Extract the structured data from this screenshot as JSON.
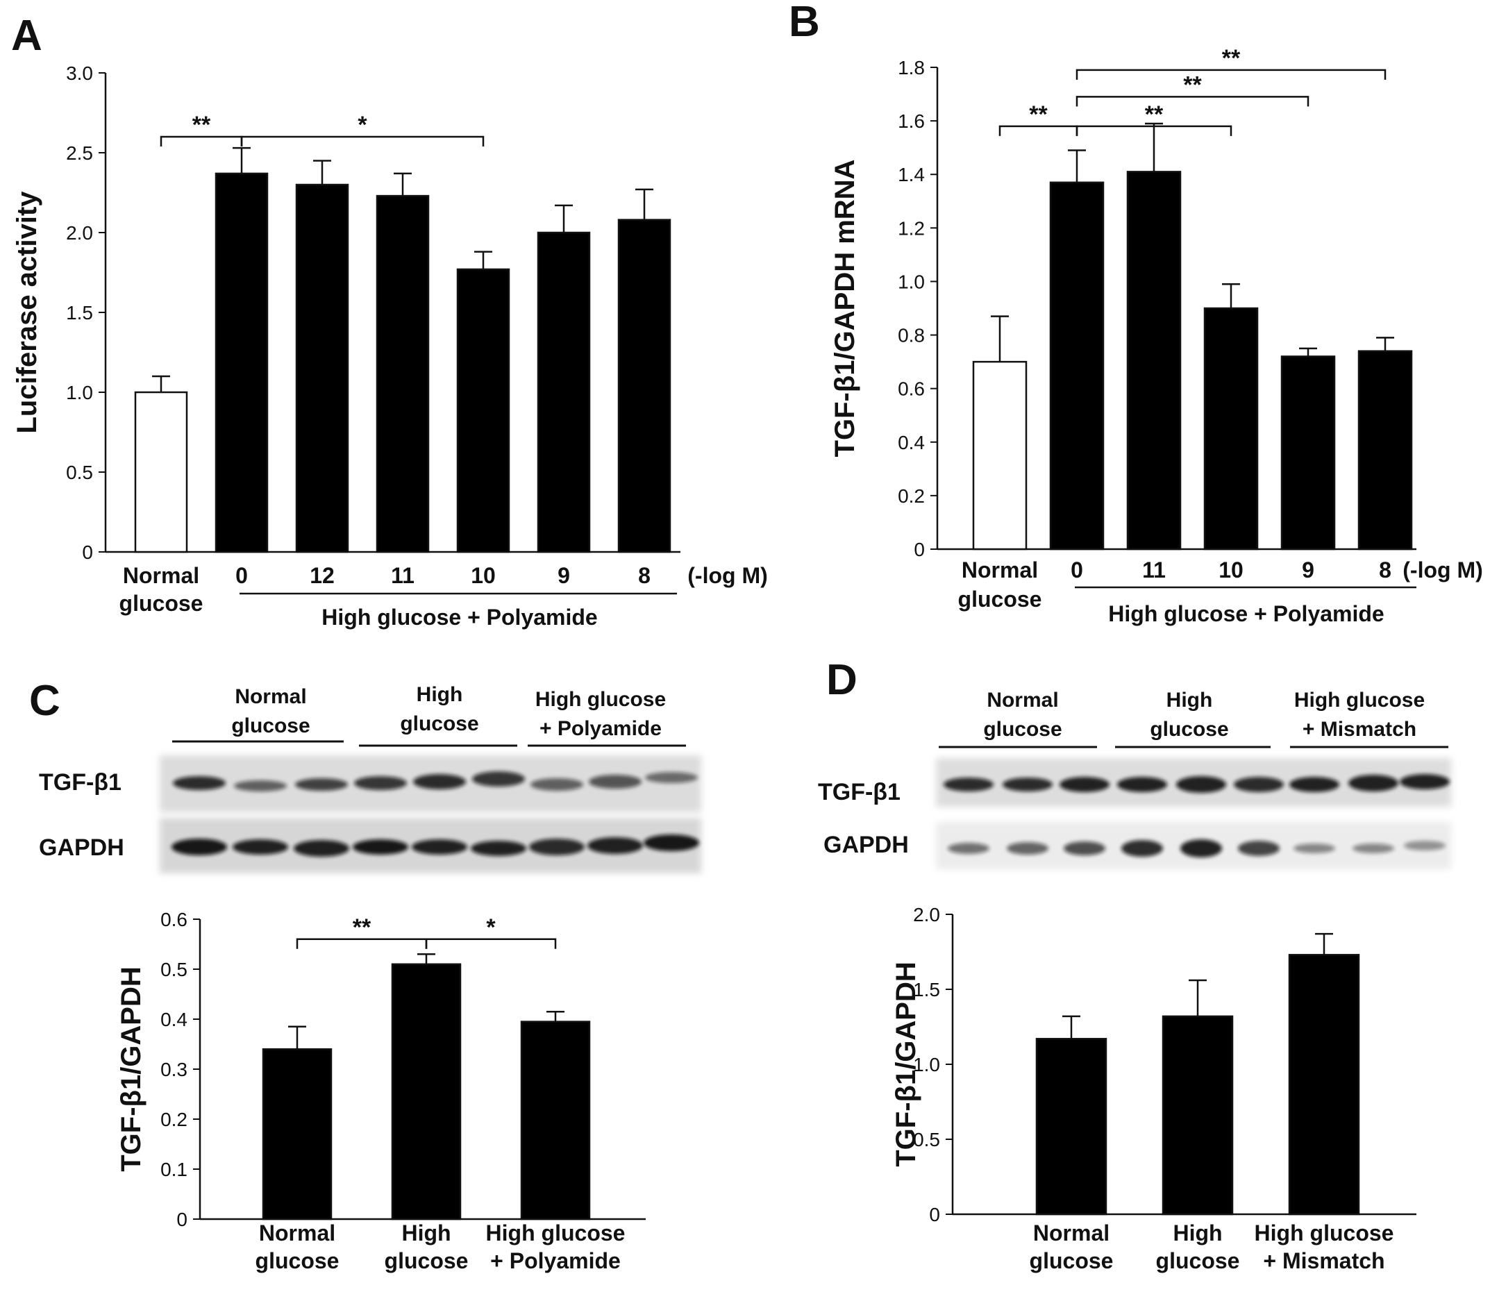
{
  "figure": {
    "colors": {
      "bar_fill": "#000000",
      "control_fill": "#ffffff",
      "line": "#111111"
    }
  },
  "chart_data": [
    {
      "id": "A",
      "panel_label": "A",
      "type": "bar",
      "ylabel": "Luciferase activity",
      "ylim": [
        0,
        3.0
      ],
      "yticks": [
        0,
        0.5,
        1.0,
        1.5,
        2.0,
        2.5,
        3.0
      ],
      "ytick_labels": [
        "0",
        "0.5",
        "1.0",
        "1.5",
        "2.0",
        "2.5",
        "3.0"
      ],
      "categories": [
        [
          "Normal",
          "glucose"
        ],
        [
          "0"
        ],
        [
          "12"
        ],
        [
          "11"
        ],
        [
          "10"
        ],
        [
          "9"
        ],
        [
          "8"
        ]
      ],
      "values": [
        1.0,
        2.37,
        2.3,
        2.23,
        1.77,
        2.0,
        2.08
      ],
      "errors": [
        0.1,
        0.16,
        0.15,
        0.14,
        0.11,
        0.17,
        0.19
      ],
      "fills": [
        "white",
        "black",
        "black",
        "black",
        "black",
        "black",
        "black"
      ],
      "unit_label": "(-log M)",
      "group_label": "High glucose + Polyamide",
      "group_range": [
        1,
        6
      ],
      "significance": [
        {
          "from": 0,
          "to": 1,
          "label": "**",
          "y": 2.6
        },
        {
          "from": 1,
          "to": 4,
          "label": "*",
          "y": 2.6
        }
      ]
    },
    {
      "id": "B",
      "panel_label": "B",
      "type": "bar",
      "ylabel": "TGF-β1/GAPDH mRNA",
      "ylim": [
        0,
        1.8
      ],
      "yticks": [
        0,
        0.2,
        0.4,
        0.6,
        0.8,
        1.0,
        1.2,
        1.4,
        1.6,
        1.8
      ],
      "ytick_labels": [
        "0",
        "0.2",
        "0.4",
        "0.6",
        "0.8",
        "1.0",
        "1.2",
        "1.4",
        "1.6",
        "1.8"
      ],
      "categories": [
        [
          "Normal",
          "glucose"
        ],
        [
          "0"
        ],
        [
          "11"
        ],
        [
          "10"
        ],
        [
          "9"
        ],
        [
          "8"
        ]
      ],
      "values": [
        0.7,
        1.37,
        1.41,
        0.9,
        0.72,
        0.74
      ],
      "errors": [
        0.17,
        0.12,
        0.18,
        0.09,
        0.03,
        0.05
      ],
      "fills": [
        "white",
        "black",
        "black",
        "black",
        "black",
        "black"
      ],
      "unit_label": "(-log M)",
      "group_label": "High glucose + Polyamide",
      "group_range": [
        1,
        5
      ],
      "significance": [
        {
          "from": 0,
          "to": 1,
          "label": "**",
          "y": 1.58
        },
        {
          "from": 1,
          "to": 3,
          "label": "**",
          "y": 1.58
        },
        {
          "from": 1,
          "to": 4,
          "label": "**",
          "y": 1.69
        },
        {
          "from": 1,
          "to": 5,
          "label": "**",
          "y": 1.79
        }
      ]
    },
    {
      "id": "C",
      "panel_label": "C",
      "type": "bar",
      "ylabel": "TGF-β1/GAPDH",
      "ylim": [
        0,
        0.6
      ],
      "yticks": [
        0,
        0.1,
        0.2,
        0.3,
        0.4,
        0.5,
        0.6
      ],
      "ytick_labels": [
        "0",
        "0.1",
        "0.2",
        "0.3",
        "0.4",
        "0.5",
        "0.6"
      ],
      "categories": [
        [
          "Normal",
          "glucose"
        ],
        [
          "High",
          "glucose"
        ],
        [
          "High glucose",
          "+ Polyamide"
        ]
      ],
      "values": [
        0.34,
        0.51,
        0.395
      ],
      "errors": [
        0.045,
        0.02,
        0.02
      ],
      "fills": [
        "black",
        "black",
        "black"
      ],
      "significance": [
        {
          "from": 0,
          "to": 1,
          "label": "**",
          "y": 0.56
        },
        {
          "from": 1,
          "to": 2,
          "label": "*",
          "y": 0.56
        }
      ],
      "blot": {
        "groups": [
          [
            "Normal",
            "glucose"
          ],
          [
            "High",
            "glucose"
          ],
          [
            "High glucose",
            "+ Polyamide"
          ]
        ],
        "rows": [
          "TGF-β1",
          "GAPDH"
        ]
      }
    },
    {
      "id": "D",
      "panel_label": "D",
      "type": "bar",
      "ylabel": "TGF-β1/GAPDH",
      "ylim": [
        0,
        2.0
      ],
      "yticks": [
        0,
        0.5,
        1.0,
        1.5,
        2.0
      ],
      "ytick_labels": [
        "0",
        "0.5",
        "1.0",
        "1.5",
        "2.0"
      ],
      "categories": [
        [
          "Normal",
          "glucose"
        ],
        [
          "High",
          "glucose"
        ],
        [
          "High glucose",
          "+ Mismatch"
        ]
      ],
      "values": [
        1.17,
        1.32,
        1.73
      ],
      "errors": [
        0.15,
        0.24,
        0.14
      ],
      "fills": [
        "black",
        "black",
        "black"
      ],
      "significance": [],
      "blot": {
        "groups": [
          [
            "Normal",
            "glucose"
          ],
          [
            "High",
            "glucose"
          ],
          [
            "High glucose",
            "+ Mismatch"
          ]
        ],
        "rows": [
          "TGF-β1",
          "GAPDH"
        ]
      }
    }
  ]
}
